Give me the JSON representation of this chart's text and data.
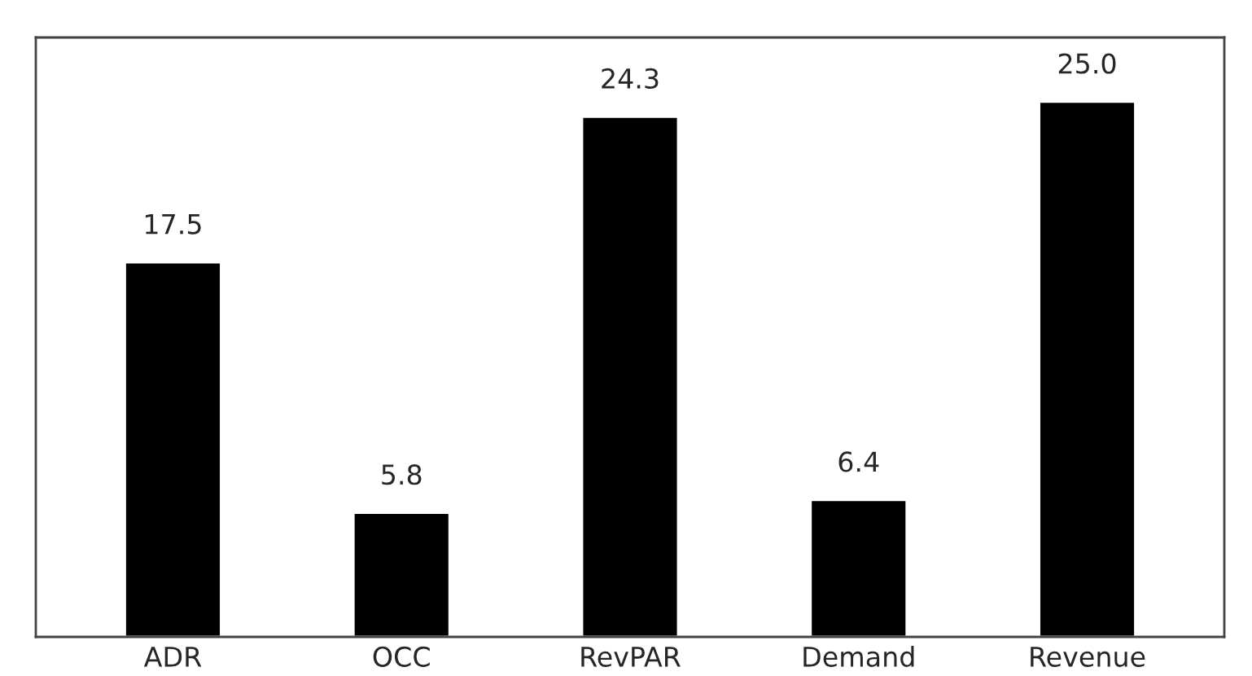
{
  "chart_data": {
    "type": "bar",
    "categories": [
      "ADR",
      "OCC",
      "RevPAR",
      "Demand",
      "Revenue"
    ],
    "values": [
      17.5,
      5.8,
      24.3,
      6.4,
      25.0
    ],
    "value_labels": [
      "17.5",
      "5.8",
      "24.3",
      "6.4",
      "25.0"
    ],
    "color": "#000000",
    "ylim": [
      0,
      28
    ],
    "grid": false,
    "legend": false,
    "tick_labels": "x"
  }
}
